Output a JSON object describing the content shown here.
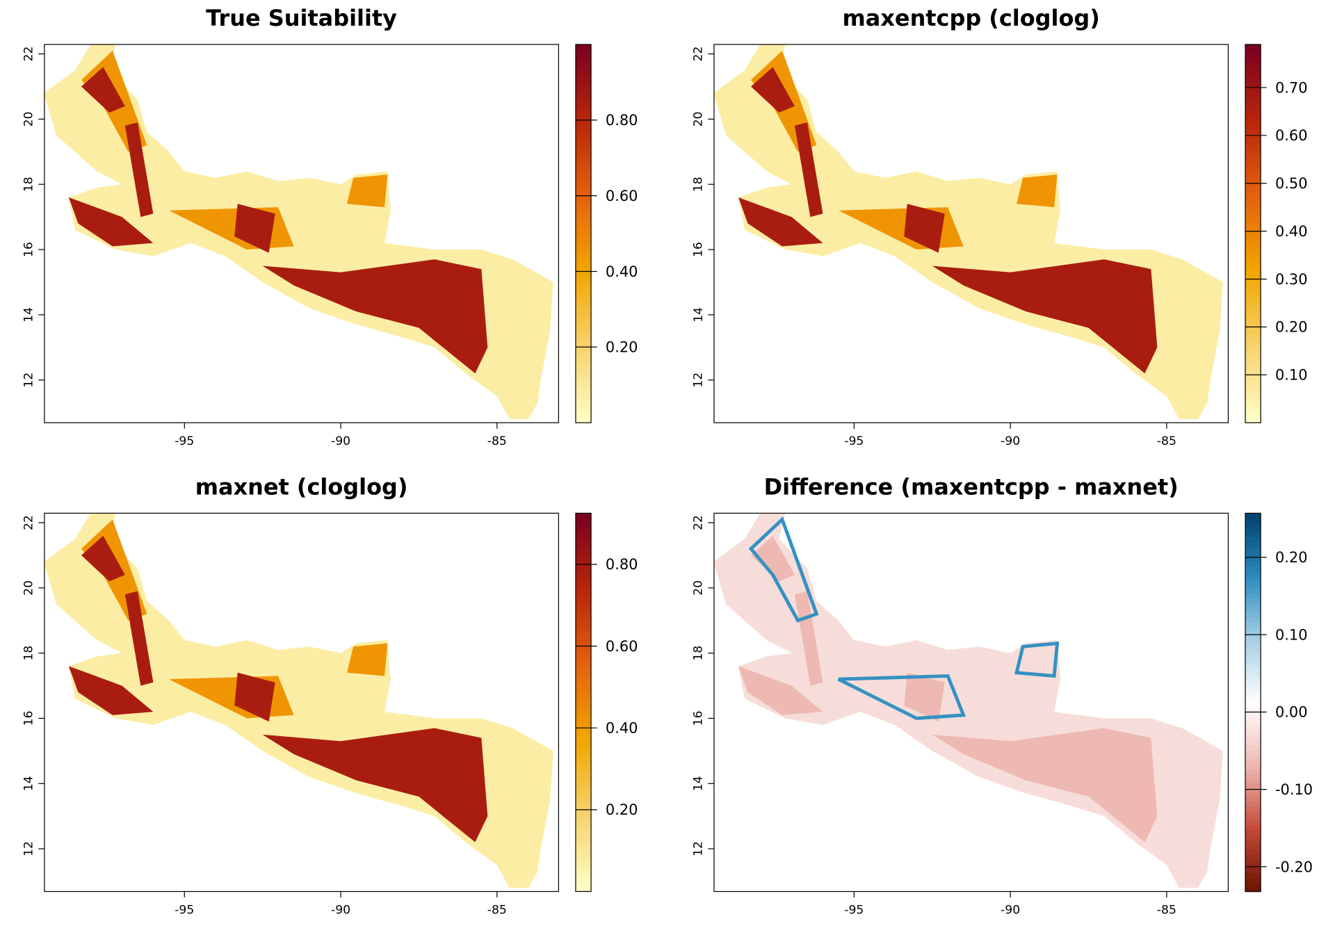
{
  "chart_data": [
    {
      "type": "raster",
      "title": "True Suitability",
      "xlim": [
        -99.48,
        -83.03
      ],
      "ylim": [
        10.69,
        22.29
      ],
      "xticks": [
        -95,
        -90,
        -85
      ],
      "yticks": [
        12,
        14,
        16,
        18,
        20,
        22
      ],
      "colorbar": {
        "clim": [
          0.0,
          1.0
        ],
        "ticks": [
          {
            "value": 0.2,
            "label": "0.20"
          },
          {
            "value": 0.4,
            "label": "0.40"
          },
          {
            "value": 0.6,
            "label": "0.60"
          },
          {
            "value": 0.8,
            "label": "0.80"
          }
        ],
        "colors": [
          "#ffffc8",
          "#f7d36e",
          "#f2a600",
          "#e4620e",
          "#b8260a",
          "#7a0022"
        ]
      }
    },
    {
      "type": "raster",
      "title": "maxentcpp (cloglog)",
      "xlim": [
        -99.48,
        -83.03
      ],
      "ylim": [
        10.69,
        22.29
      ],
      "xticks": [
        -95,
        -90,
        -85
      ],
      "yticks": [
        12,
        14,
        16,
        18,
        20,
        22
      ],
      "colorbar": {
        "clim": [
          0.0,
          0.79
        ],
        "ticks": [
          {
            "value": 0.1,
            "label": "0.10"
          },
          {
            "value": 0.2,
            "label": "0.20"
          },
          {
            "value": 0.3,
            "label": "0.30"
          },
          {
            "value": 0.4,
            "label": "0.40"
          },
          {
            "value": 0.5,
            "label": "0.50"
          },
          {
            "value": 0.6,
            "label": "0.60"
          },
          {
            "value": 0.7,
            "label": "0.70"
          }
        ],
        "colors": [
          "#ffffc8",
          "#f7d36e",
          "#f2a600",
          "#e4620e",
          "#b8260a",
          "#7a0022"
        ]
      }
    },
    {
      "type": "raster",
      "title": "maxnet (cloglog)",
      "xlim": [
        -99.48,
        -83.03
      ],
      "ylim": [
        10.69,
        22.29
      ],
      "xticks": [
        -95,
        -90,
        -85
      ],
      "yticks": [
        12,
        14,
        16,
        18,
        20,
        22
      ],
      "colorbar": {
        "clim": [
          0.0,
          0.925
        ],
        "ticks": [
          {
            "value": 0.2,
            "label": "0.20"
          },
          {
            "value": 0.4,
            "label": "0.40"
          },
          {
            "value": 0.6,
            "label": "0.60"
          },
          {
            "value": 0.8,
            "label": "0.80"
          }
        ],
        "colors": [
          "#ffffc8",
          "#f7d36e",
          "#f2a600",
          "#e4620e",
          "#b8260a",
          "#7a0022"
        ]
      }
    },
    {
      "type": "raster",
      "title": "Difference (maxentcpp - maxnet)",
      "xlim": [
        -99.48,
        -83.03
      ],
      "ylim": [
        10.69,
        22.29
      ],
      "xticks": [
        -95,
        -90,
        -85
      ],
      "yticks": [
        12,
        14,
        16,
        18,
        20,
        22
      ],
      "colorbar": {
        "clim": [
          -0.232,
          0.257
        ],
        "ticks": [
          {
            "value": -0.2,
            "label": "-0.20"
          },
          {
            "value": -0.1,
            "label": "-0.10"
          },
          {
            "value": 0.0,
            "label": "0.00"
          },
          {
            "value": 0.1,
            "label": "0.10"
          },
          {
            "value": 0.2,
            "label": "0.20"
          }
        ],
        "colors": [
          "#6b1300",
          "#c4493a",
          "#eeb8b0",
          "#ffffff",
          "#a9d0e6",
          "#2a8cc0",
          "#00406c"
        ]
      }
    }
  ]
}
